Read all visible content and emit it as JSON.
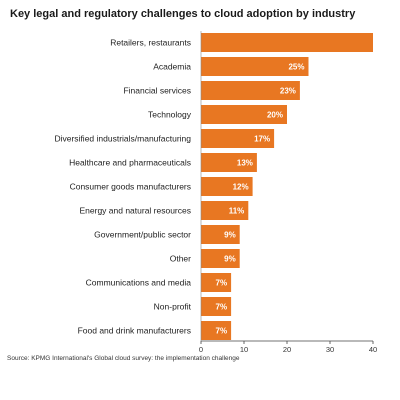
{
  "chart_data": {
    "type": "bar",
    "orientation": "horizontal",
    "title": "Key legal and regulatory challenges to cloud adoption by industry",
    "categories": [
      "Retailers, restaurants",
      "Academia",
      "Financial services",
      "Technology",
      "Diversified industrials/manufacturing",
      "Healthcare and pharmaceuticals",
      "Consumer goods manufacturers",
      "Energy and natural resources",
      "Government/public sector",
      "Other",
      "Communications and media",
      "Non-profit",
      "Food and drink manufacturers"
    ],
    "values": [
      40,
      25,
      23,
      20,
      17,
      13,
      12,
      11,
      9,
      9,
      7,
      7,
      7
    ],
    "data_labels": [
      "",
      "25%",
      "23%",
      "20%",
      "17%",
      "13%",
      "12%",
      "11%",
      "9%",
      "9%",
      "7%",
      "7%",
      "7%"
    ],
    "xlim": [
      0,
      40
    ],
    "xticks": [
      0,
      10,
      20,
      30,
      40
    ],
    "bar_color": "#E87722",
    "grid": false,
    "legend": "none"
  },
  "source": "Source: KPMG International's Global cloud survey: the implementation challenge"
}
